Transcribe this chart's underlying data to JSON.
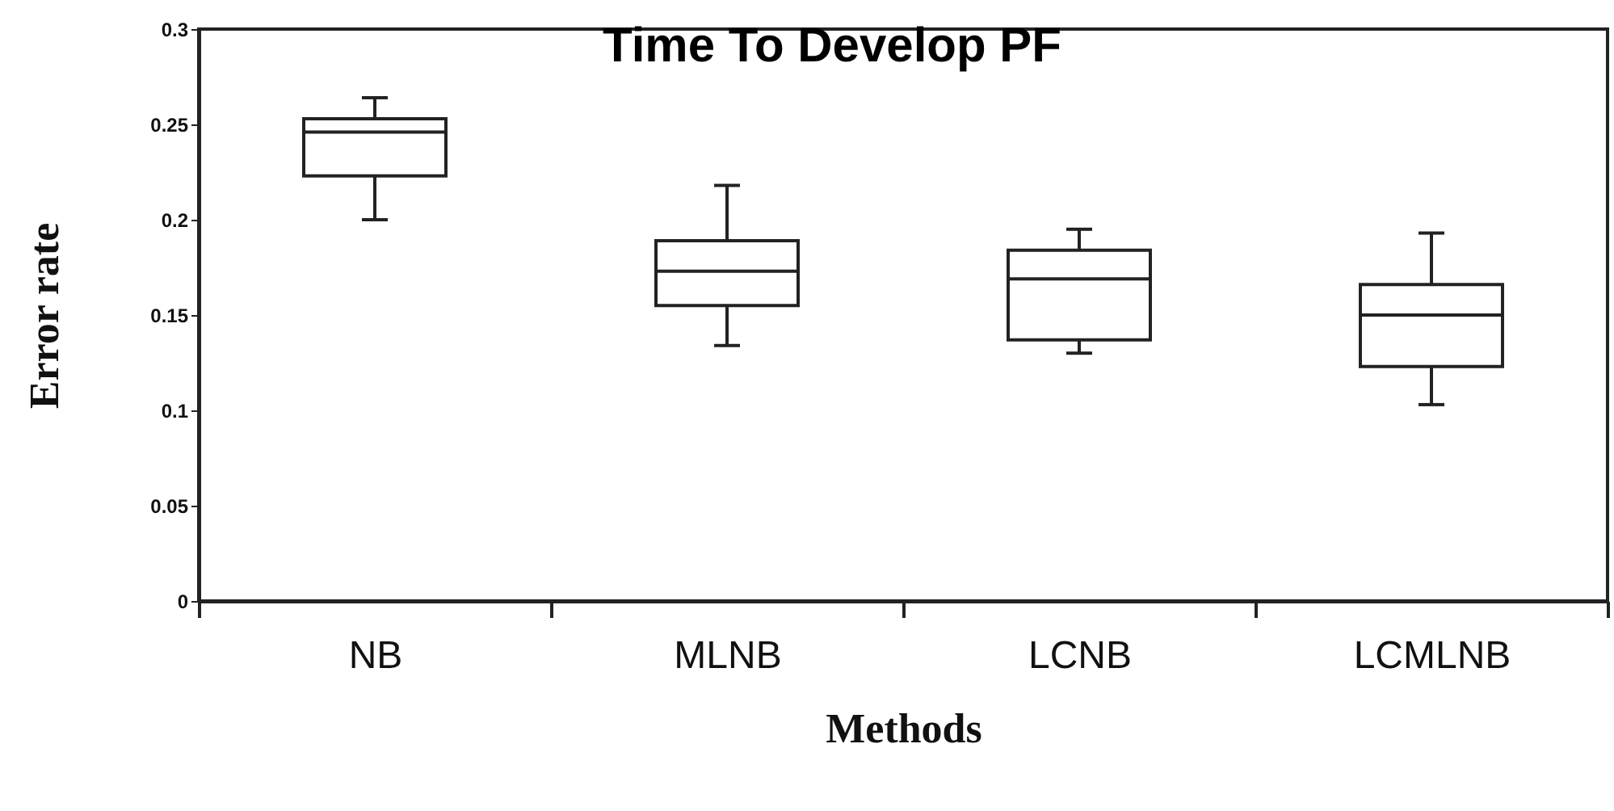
{
  "chart_data": {
    "type": "box",
    "title": "Time To Develop PF",
    "xlabel": "Methods",
    "ylabel": "Error rate",
    "categories": [
      "NB",
      "MLNB",
      "LCNB",
      "LCMLNB"
    ],
    "boxes": [
      {
        "low": 0.2,
        "q1": 0.223,
        "median": 0.246,
        "q3": 0.253,
        "high": 0.264
      },
      {
        "low": 0.134,
        "q1": 0.155,
        "median": 0.173,
        "q3": 0.189,
        "high": 0.218
      },
      {
        "low": 0.13,
        "q1": 0.137,
        "median": 0.169,
        "q3": 0.184,
        "high": 0.195
      },
      {
        "low": 0.103,
        "q1": 0.123,
        "median": 0.15,
        "q3": 0.166,
        "high": 0.193
      }
    ],
    "ylim": [
      0,
      0.3
    ],
    "yticks": [
      0,
      0.05,
      0.1,
      0.15,
      0.2,
      0.25,
      0.3
    ],
    "grid": false
  }
}
